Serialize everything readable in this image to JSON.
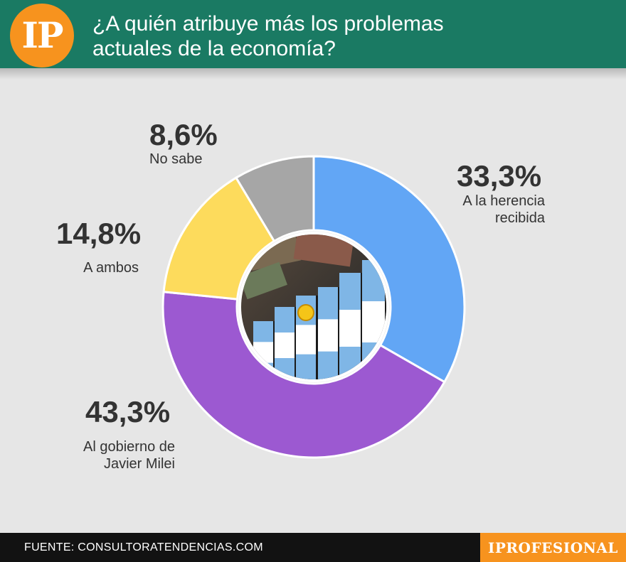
{
  "header": {
    "logo_text": "IP",
    "title": "¿A quién atribuye más los problemas actuales de la economía?"
  },
  "chart_data": {
    "type": "pie",
    "title": "¿A quién atribuye más los problemas actuales de la economía?",
    "categories": [
      "A la herencia recibida",
      "Al gobierno de Javier Milei",
      "A ambos",
      "No sabe"
    ],
    "values": [
      33.3,
      43.3,
      14.8,
      8.6
    ],
    "value_labels": [
      "33,3%",
      "43,3%",
      "14,8%",
      "8,6%"
    ],
    "colors": [
      "#62a6f5",
      "#9c59d1",
      "#fddb5c",
      "#a6a6a6"
    ],
    "style": "donut with center photo (Argentine flag bars over banknotes)"
  },
  "labels": {
    "herencia": {
      "pct": "33,3%",
      "line1": "A la herencia",
      "line2": "recibida"
    },
    "gobierno": {
      "pct": "43,3%",
      "line1": "Al gobierno de",
      "line2": "Javier Milei"
    },
    "ambos": {
      "pct": "14,8%",
      "line1": "A ambos"
    },
    "nosabe": {
      "pct": "8,6%",
      "line1": "No sabe"
    }
  },
  "footer": {
    "source": "FUENTE: CONSULTORATENDENCIAS.COM",
    "brand": "IPROFESIONAL"
  },
  "colors": {
    "header_bg": "#1a7a63",
    "accent": "#f7931e",
    "background": "#e6e6e6",
    "footer_bg": "#121212"
  }
}
